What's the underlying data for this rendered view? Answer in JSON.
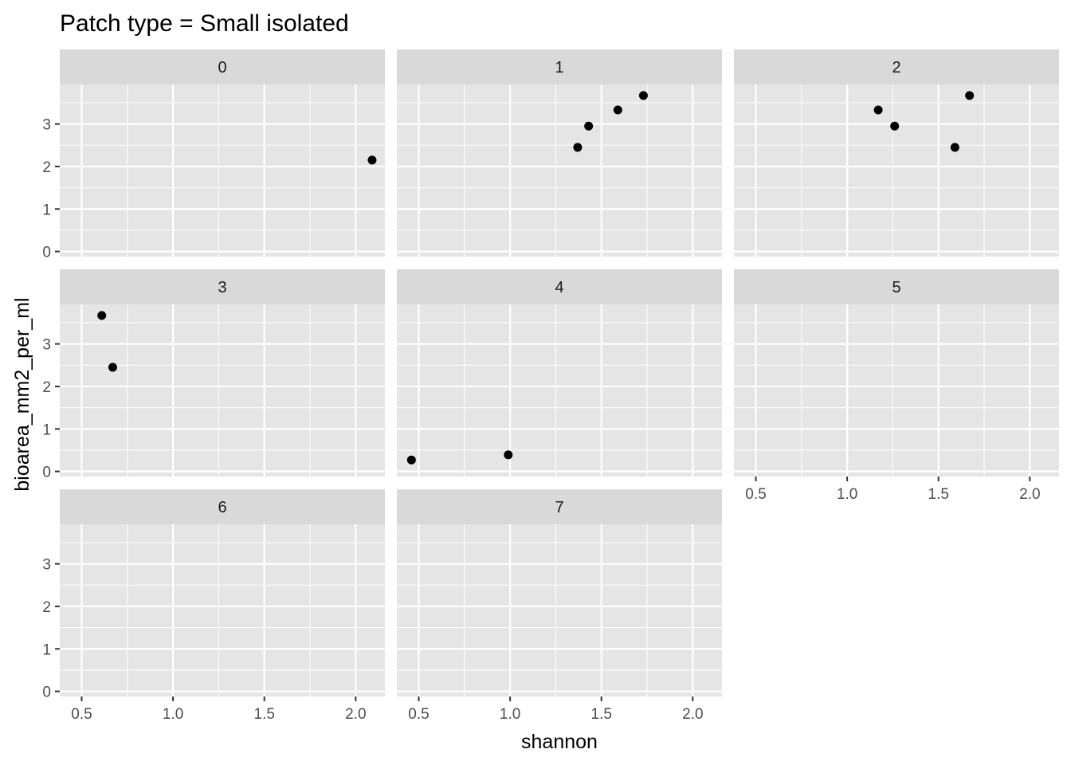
{
  "chart_data": {
    "type": "scatter",
    "title": "Patch type = Small isolated",
    "xlabel": "shannon",
    "ylabel": "bioarea_mm2_per_ml",
    "xlim": [
      0.38,
      2.16
    ],
    "ylim": [
      -0.12,
      3.93
    ],
    "x_ticks": [
      0.5,
      1.0,
      1.5,
      2.0
    ],
    "x_tick_labels": [
      "0.5",
      "1.0",
      "1.5",
      "2.0"
    ],
    "y_ticks": [
      0,
      1,
      2,
      3
    ],
    "y_tick_labels": [
      "0",
      "1",
      "2",
      "3"
    ],
    "grid": true,
    "facet_ncol": 3,
    "colors": {
      "panel_background": "#e5e5e5",
      "strip_background": "#d9d9d9",
      "grid": "#ffffff",
      "point": "#000000"
    },
    "panels": [
      {
        "label": "0",
        "points": [
          {
            "x": 2.09,
            "y": 2.15
          }
        ]
      },
      {
        "label": "1",
        "points": [
          {
            "x": 1.37,
            "y": 2.45
          },
          {
            "x": 1.43,
            "y": 2.95
          },
          {
            "x": 1.59,
            "y": 3.33
          },
          {
            "x": 1.73,
            "y": 3.67
          }
        ]
      },
      {
        "label": "2",
        "points": [
          {
            "x": 1.17,
            "y": 3.33
          },
          {
            "x": 1.26,
            "y": 2.95
          },
          {
            "x": 1.59,
            "y": 2.45
          },
          {
            "x": 1.67,
            "y": 3.67
          }
        ]
      },
      {
        "label": "3",
        "points": [
          {
            "x": 0.61,
            "y": 3.67
          },
          {
            "x": 0.67,
            "y": 2.45
          }
        ]
      },
      {
        "label": "4",
        "points": [
          {
            "x": 0.46,
            "y": 0.27
          },
          {
            "x": 0.99,
            "y": 0.39
          }
        ]
      },
      {
        "label": "5",
        "points": []
      },
      {
        "label": "6",
        "points": []
      },
      {
        "label": "7",
        "points": []
      }
    ]
  }
}
